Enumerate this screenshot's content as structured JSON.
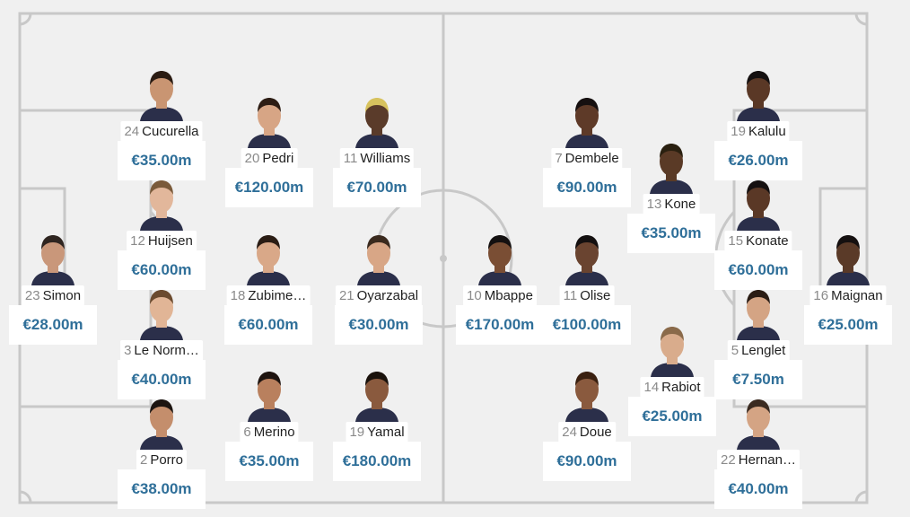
{
  "colors": {
    "pitch_bg": "#f0f0f0",
    "lines": "#c8c8c8",
    "price_text": "#2f6f99",
    "shirt_number": "#8a8a8a",
    "name_text": "#1f1f1f"
  },
  "players": [
    {
      "id": "cucurella",
      "number": "24",
      "name": "Cucurella",
      "price": "€35.00m",
      "skin": "#c99572",
      "hair": "#2a1b12"
    },
    {
      "id": "pedri",
      "number": "20",
      "name": "Pedri",
      "price": "€120.00m",
      "skin": "#d7a585",
      "hair": "#2d1d14"
    },
    {
      "id": "williams",
      "number": "11",
      "name": "Williams",
      "price": "€70.00m",
      "skin": "#5a3b2a",
      "hair": "#d7c25e"
    },
    {
      "id": "huijsen",
      "number": "12",
      "name": "Huijsen",
      "price": "€60.00m",
      "skin": "#e2b79b",
      "hair": "#7a5a3a"
    },
    {
      "id": "simon",
      "number": "23",
      "name": "Simon",
      "price": "€28.00m",
      "skin": "#c9977a",
      "hair": "#2f2520"
    },
    {
      "id": "zubimendi",
      "number": "18",
      "name": "Zubime…",
      "price": "€60.00m",
      "skin": "#d9a888",
      "hair": "#2a1c14"
    },
    {
      "id": "oyarzabal",
      "number": "21",
      "name": "Oyarzabal",
      "price": "€30.00m",
      "skin": "#d8a686",
      "hair": "#3a2a1e"
    },
    {
      "id": "lenormand",
      "number": "3",
      "name": "Le Norm…",
      "price": "€40.00m",
      "skin": "#e1b596",
      "hair": "#6b4a2e"
    },
    {
      "id": "merino",
      "number": "6",
      "name": "Merino",
      "price": "€35.00m",
      "skin": "#b9805e",
      "hair": "#1e1410"
    },
    {
      "id": "yamal",
      "number": "19",
      "name": "Yamal",
      "price": "€180.00m",
      "skin": "#8a5a3e",
      "hair": "#1a120c"
    },
    {
      "id": "porro",
      "number": "2",
      "name": "Porro",
      "price": "€38.00m",
      "skin": "#c48e6c",
      "hair": "#1c1410"
    },
    {
      "id": "dembele",
      "number": "7",
      "name": "Dembele",
      "price": "€90.00m",
      "skin": "#5e3a28",
      "hair": "#161010"
    },
    {
      "id": "kalulu",
      "number": "19",
      "name": "Kalulu",
      "price": "€26.00m",
      "skin": "#5a3826",
      "hair": "#141010"
    },
    {
      "id": "kone",
      "number": "13",
      "name": "Kone",
      "price": "€35.00m",
      "skin": "#5a3a26",
      "hair": "#2a2010"
    },
    {
      "id": "konate",
      "number": "15",
      "name": "Konate",
      "price": "€60.00m",
      "skin": "#5a3826",
      "hair": "#151010"
    },
    {
      "id": "mbappe",
      "number": "10",
      "name": "Mbappe",
      "price": "€170.00m",
      "skin": "#7a4e34",
      "hair": "#141010"
    },
    {
      "id": "olise",
      "number": "11",
      "name": "Olise",
      "price": "€100.00m",
      "skin": "#6a4430",
      "hair": "#141010"
    },
    {
      "id": "maignan",
      "number": "16",
      "name": "Maignan",
      "price": "€25.00m",
      "skin": "#5a3a28",
      "hair": "#151010"
    },
    {
      "id": "lenglet",
      "number": "5",
      "name": "Lenglet",
      "price": "€7.50m",
      "skin": "#d4a484",
      "hair": "#2a1c14"
    },
    {
      "id": "rabiot",
      "number": "14",
      "name": "Rabiot",
      "price": "€25.00m",
      "skin": "#d9ac8c",
      "hair": "#8a6a4a"
    },
    {
      "id": "doue",
      "number": "24",
      "name": "Doue",
      "price": "€90.00m",
      "skin": "#8a5a3e",
      "hair": "#3a2010"
    },
    {
      "id": "hernandez",
      "number": "22",
      "name": "Hernan…",
      "price": "€40.00m",
      "skin": "#d4a484",
      "hair": "#3a2a20"
    }
  ]
}
